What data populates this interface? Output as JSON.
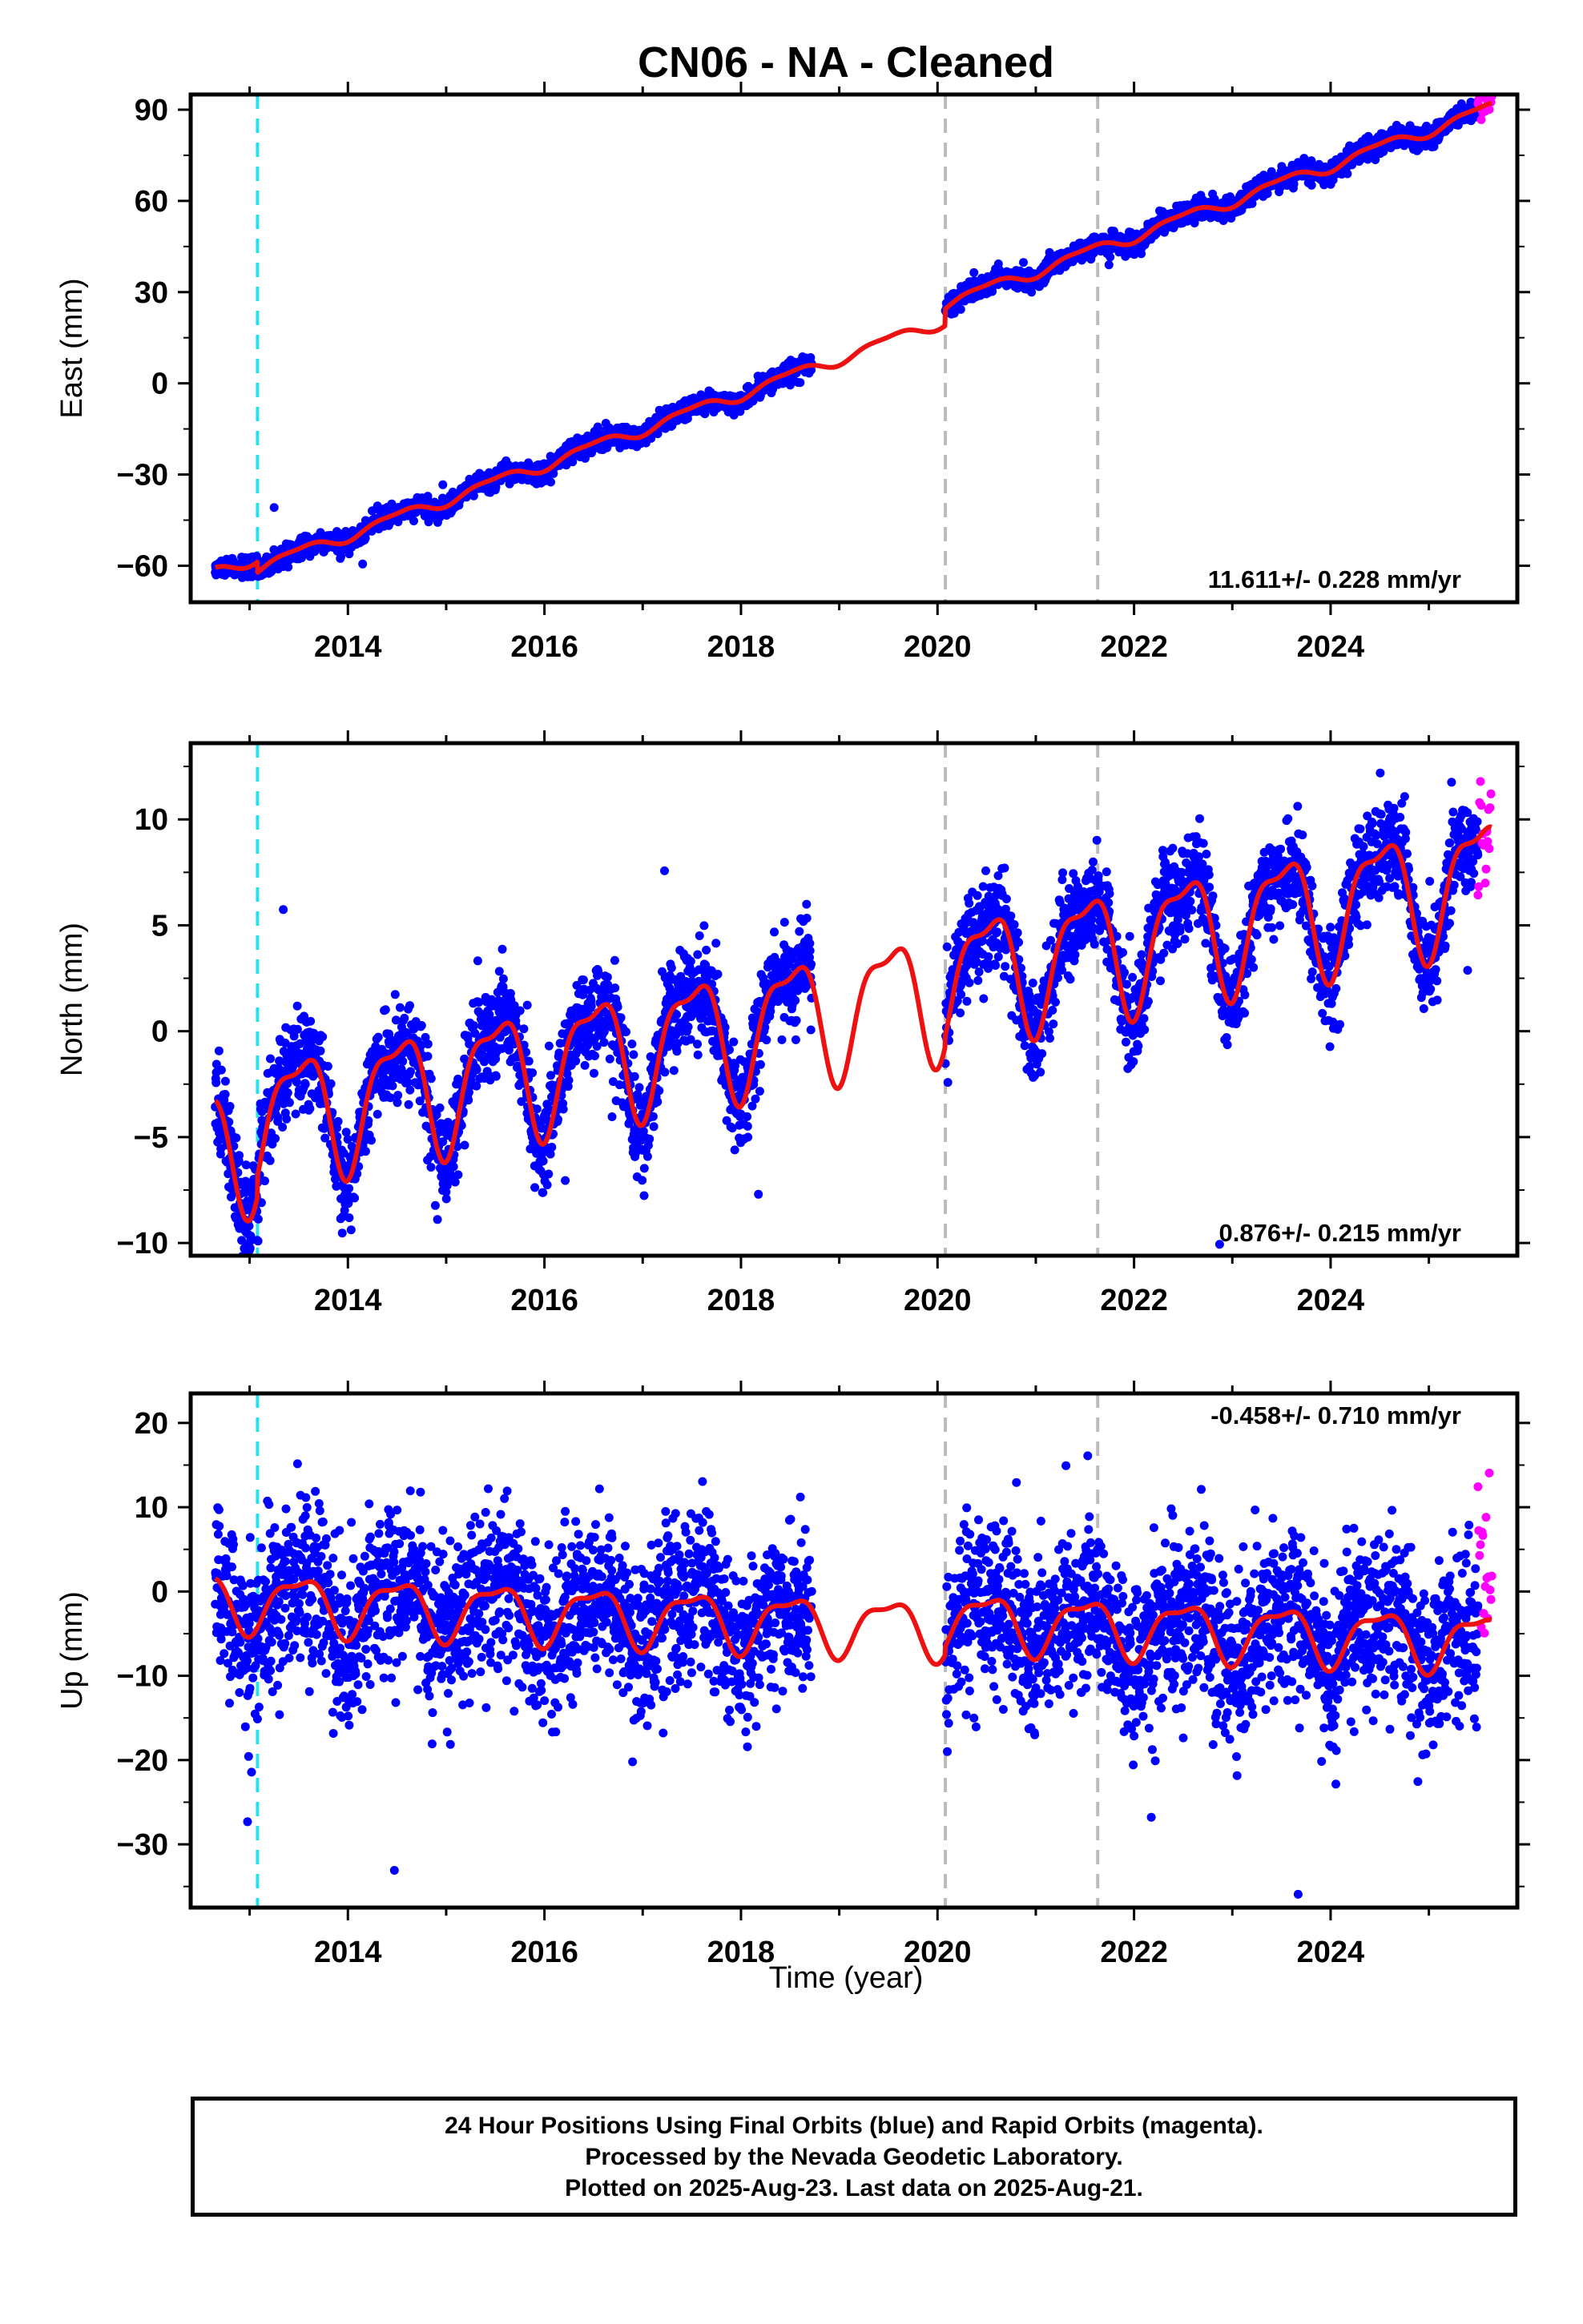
{
  "chart_data": {
    "type": "scatter",
    "title": "CN06  - NA - Cleaned",
    "xlabel": "Time (year)",
    "xlim": [
      2012.4,
      2025.9
    ],
    "x_ticks": [
      "2014",
      "2016",
      "2018",
      "2020",
      "2022",
      "2024"
    ],
    "vertical_lines": [
      {
        "x": 2013.08,
        "color": "#22e4ee",
        "style": "dashed"
      },
      {
        "x": 2020.08,
        "color": "#bbbbbb",
        "style": "dashed"
      },
      {
        "x": 2021.63,
        "color": "#bbbbbb",
        "style": "dashed"
      }
    ],
    "colors": {
      "final": "#0000ff",
      "rapid": "#ff00ff",
      "model": "#ee1111"
    },
    "data_span": {
      "start": 2012.65,
      "end": 2025.64
    },
    "data_gap": [
      2018.72,
      2020.08
    ],
    "rapid_span": [
      2025.5,
      2025.64
    ],
    "panels": [
      {
        "id": "east",
        "ylabel": "East (mm)",
        "ylim": [
          -72,
          95
        ],
        "y_ticks": [
          "90",
          "60",
          "30",
          "0",
          "−30",
          "−60"
        ],
        "y_tick_values": [
          90,
          60,
          30,
          0,
          -30,
          -60
        ],
        "rate": "11.611+/- 0.228 mm/yr",
        "model": {
          "t0": 2012.65,
          "offset0": -62,
          "rate": 11.611,
          "steps": [
            {
              "x": 2013.08,
              "dy": -3.5
            },
            {
              "x": 2020.08,
              "dy": 5.5
            }
          ],
          "seasonal_amp": 1.8,
          "noise": 1.6,
          "outlier_rate": 0.002,
          "outlier_scale": 4
        },
        "rapid_offset": 3,
        "rapid_noise": 2.5
      },
      {
        "id": "north",
        "ylabel": "North (mm)",
        "ylim": [
          -10.6,
          13.6
        ],
        "y_ticks": [
          "10",
          "5",
          "0",
          "−5",
          "−10"
        ],
        "y_tick_values": [
          10,
          5,
          0,
          -5,
          -10
        ],
        "rate": "0.876+/- 0.215 mm/yr",
        "model": {
          "t0": 2012.65,
          "offset0": -5.5,
          "rate": 0.876,
          "steps": [
            {
              "x": 2013.08,
              "dy": 1.0
            },
            {
              "x": 2020.08,
              "dy": 0.5
            }
          ],
          "seasonal_amp": 2.8,
          "noise": 1.1,
          "outlier_rate": 0.01,
          "outlier_scale": 4
        },
        "rapid_offset": 1.5,
        "rapid_noise": 2.5
      },
      {
        "id": "up",
        "ylabel": "Up (mm)",
        "ylim": [
          -37.5,
          23.5
        ],
        "y_ticks": [
          "20",
          "10",
          "0",
          "−10",
          "−20",
          "−30"
        ],
        "y_tick_values": [
          20,
          10,
          0,
          -10,
          -20,
          -30
        ],
        "rate": "-0.458+/- 0.710 mm/yr",
        "model": {
          "t0": 2012.65,
          "offset0": -1,
          "rate": -0.458,
          "steps": [
            {
              "x": 2013.08,
              "dy": 0
            },
            {
              "x": 2020.08,
              "dy": 1.0
            }
          ],
          "seasonal_amp": 3.2,
          "noise": 4.8,
          "outlier_rate": 0.008,
          "outlier_scale": 4
        },
        "rapid_offset": 14,
        "rapid_noise": 5
      }
    ]
  },
  "footer": {
    "line1": "24 Hour Positions Using Final Orbits (blue) and Rapid Orbits (magenta).",
    "line2": "Processed by the Nevada Geodetic Laboratory.",
    "line3": "Plotted on 2025-Aug-23. Last data on 2025-Aug-21."
  }
}
